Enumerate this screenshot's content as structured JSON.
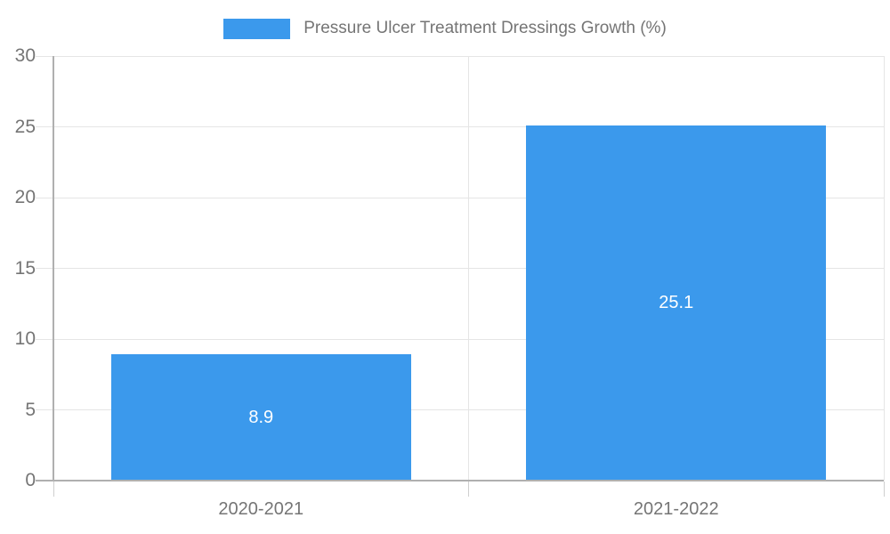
{
  "chart_data": {
    "type": "bar",
    "title": "Pressure Ulcer Treatment Dressings Growth (%)",
    "legend": [
      "Pressure Ulcer Treatment Dressings Growth (%)"
    ],
    "legend_position": "top-center",
    "categories": [
      "2020-2021",
      "2021-2022"
    ],
    "values": [
      8.9,
      25.1
    ],
    "value_labels": [
      "8.9",
      "25.1"
    ],
    "xlabel": "",
    "ylabel": "",
    "ylim": [
      0,
      30
    ],
    "yticks": [
      0,
      5,
      10,
      15,
      20,
      25,
      30
    ],
    "grid": true,
    "colors": {
      "bar": "#3B99EC",
      "axis_line": "#B0B0B0",
      "gridline": "#E5E5E5",
      "tick": "#CFCFCF",
      "label_text": "#757575",
      "value_text": "#FFFFFF",
      "background": "#FFFFFF"
    }
  }
}
